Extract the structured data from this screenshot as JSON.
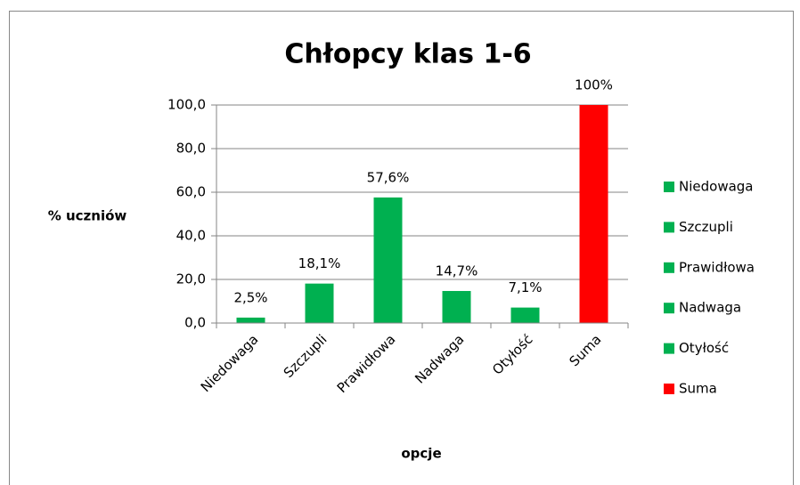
{
  "chart_data": {
    "type": "bar",
    "title": "Chłopcy klas 1-6",
    "x_label": "opcje",
    "y_label": "% uczniów",
    "categories": [
      "Niedowaga",
      "Szczupli",
      "Prawidłowa",
      "Nadwaga",
      "Otyłość",
      "Suma"
    ],
    "values": [
      2.5,
      18.1,
      57.6,
      14.7,
      7.1,
      100
    ],
    "value_labels": [
      "2,5%",
      "18,1%",
      "57,6%",
      "14,7%",
      "7,1%",
      "100%"
    ],
    "colors": [
      "#00b050",
      "#00b050",
      "#00b050",
      "#00b050",
      "#00b050",
      "#ff0000"
    ],
    "ylim": [
      0,
      100
    ],
    "yticks": [
      {
        "value": 0,
        "label": "0,0"
      },
      {
        "value": 20,
        "label": "20,0"
      },
      {
        "value": 40,
        "label": "40,0"
      },
      {
        "value": 60,
        "label": "60,0"
      },
      {
        "value": 80,
        "label": "80,0"
      },
      {
        "value": 100,
        "label": "100,0"
      }
    ],
    "grid": true,
    "legend": "right"
  }
}
